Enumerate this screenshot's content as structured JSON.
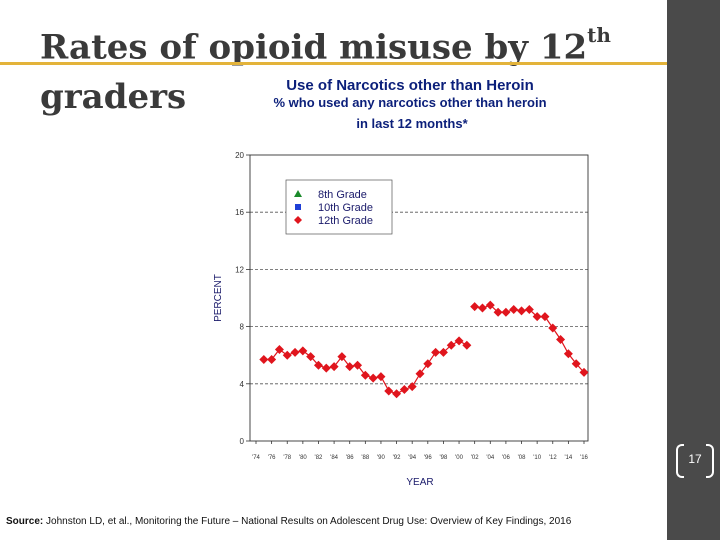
{
  "slide": {
    "title_part1": "Rates of opioid misuse by 12",
    "title_sup": "th",
    "title_part2": "graders",
    "slide_number": "17",
    "source_label": "Source:",
    "source_text": " Johnston LD, et al., Monitoring the Future – National Results on Adolescent Drug Use: Overview of Key Findings, 2016"
  },
  "colors": {
    "accent": "#e3b33a",
    "sidebar": "#4a4a4a",
    "chart_title": "#0b1f7a",
    "grade8": "#1a8a2a",
    "grade10": "#1f3fd6",
    "grade12": "#e0151d"
  },
  "chart_data": {
    "type": "line",
    "title": "Use of Narcotics other than Heroin",
    "subtitle_line1": "% who used any narcotics other than heroin",
    "subtitle_line2": "in last 12 months*",
    "xlabel": "YEAR",
    "ylabel": "PERCENT",
    "ylim": [
      0,
      20
    ],
    "xlim": [
      1974,
      2016
    ],
    "yticks": [
      "0",
      "4",
      "8",
      "12",
      "16",
      "20"
    ],
    "xticks": [
      "'74",
      "'76",
      "'78",
      "'80",
      "'82",
      "'84",
      "'86",
      "'88",
      "'90",
      "'92",
      "'94",
      "'96",
      "'98",
      "'00",
      "'02",
      "'04",
      "'06",
      "'08",
      "'10",
      "'12",
      "'14",
      "'16"
    ],
    "legend": [
      "8th Grade",
      "10th Grade",
      "12th Grade"
    ],
    "series": [
      {
        "name": "12th Grade",
        "x": [
          1975,
          1976,
          1977,
          1978,
          1979,
          1980,
          1981,
          1982,
          1983,
          1984,
          1985,
          1986,
          1987,
          1988,
          1989,
          1990,
          1991,
          1992,
          1993,
          1994,
          1995,
          1996,
          1997,
          1998,
          1999,
          2000,
          2001,
          2002,
          2003,
          2004,
          2005,
          2006,
          2007,
          2008,
          2009,
          2010,
          2011,
          2012,
          2013,
          2014,
          2015,
          2016
        ],
        "values": [
          5.7,
          5.7,
          6.4,
          6.0,
          6.2,
          6.3,
          5.9,
          5.3,
          5.1,
          5.2,
          5.9,
          5.2,
          5.3,
          4.6,
          4.4,
          4.5,
          3.5,
          3.3,
          3.6,
          3.8,
          4.7,
          5.4,
          6.2,
          6.2,
          6.7,
          7.0,
          6.7,
          9.4,
          9.3,
          9.5,
          9.0,
          9.0,
          9.2,
          9.1,
          9.2,
          8.7,
          8.7,
          7.9,
          7.1,
          6.1,
          5.4,
          4.8
        ]
      }
    ]
  }
}
